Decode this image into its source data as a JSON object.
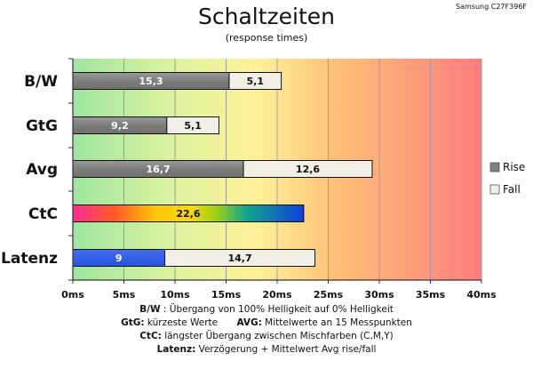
{
  "chart_data": {
    "type": "bar",
    "orientation": "horizontal",
    "stacked": true,
    "title": "Schaltzeiten",
    "subtitle": "(response times)",
    "model": "Samsung C27F396F",
    "categories": [
      "B/W",
      "GtG",
      "Avg",
      "CtC",
      "Latenz"
    ],
    "series": [
      {
        "name": "Rise",
        "color": "#808080",
        "values": [
          15.3,
          9.2,
          16.7,
          null,
          null
        ],
        "labels": [
          "15,3",
          "9,2",
          "16,7",
          "",
          ""
        ]
      },
      {
        "name": "Fall",
        "color": "#f1efe6",
        "values": [
          5.1,
          5.1,
          12.6,
          null,
          14.7
        ],
        "labels": [
          "5,1",
          "5,1",
          "12,6",
          "",
          "14,7"
        ]
      }
    ],
    "special_bars": [
      {
        "category": "CtC",
        "value": 22.6,
        "label": "22,6",
        "fill": "rainbow-gradient"
      },
      {
        "category": "Latenz",
        "value": 9,
        "label": "9",
        "fill": "#2f5ee8"
      }
    ],
    "x_ticks": [
      "0ms",
      "5ms",
      "10ms",
      "15ms",
      "20ms",
      "25ms",
      "30ms",
      "35ms",
      "40ms"
    ],
    "xlim": [
      0,
      40
    ],
    "grid": true,
    "background": "green-yellow-red-gradient",
    "legend": {
      "placement": "right",
      "items": [
        "Rise",
        "Fall"
      ]
    },
    "notes": [
      {
        "bold": "B/W",
        "text": ":  Übergang von 100% Helligkeit auf 0% Helligkeit"
      },
      {
        "bold": "GtG:",
        "text": " kürzeste  Werte",
        "bold2": "AVG:",
        "text2": " Mittelwerte  an 15 Messpunkten"
      },
      {
        "bold": "CtC:",
        "text": " längster Übergang  zwischen Mischfarben  (C,M,Y)"
      },
      {
        "bold": "Latenz:",
        "text": " Verzögerung  + Mittelwert  Avg rise/fall"
      }
    ]
  }
}
